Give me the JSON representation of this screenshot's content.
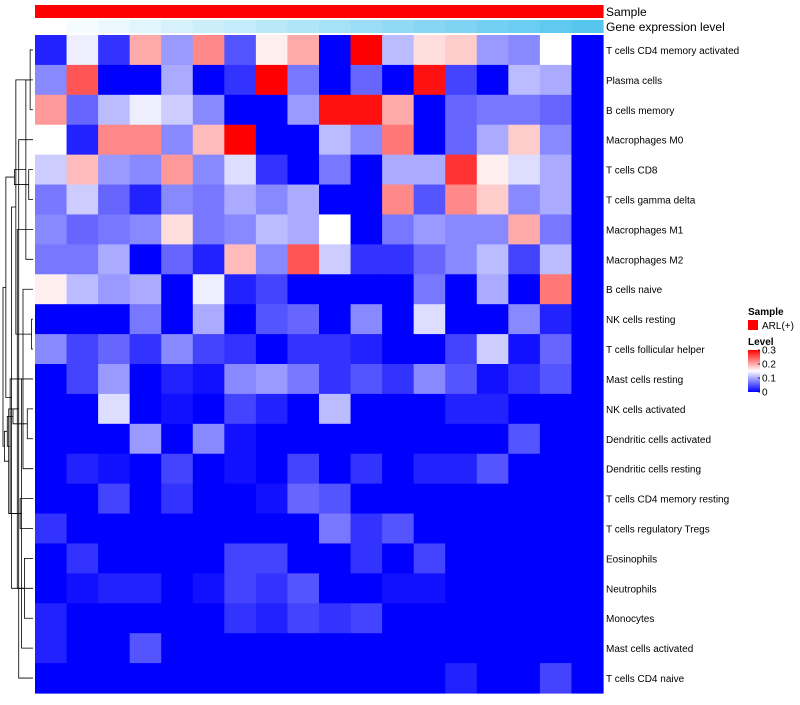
{
  "chart_data": {
    "type": "heatmap",
    "title": "",
    "top_annotations": [
      {
        "name": "Sample",
        "color": "#ff0000",
        "values": [
          "ARL(+)",
          "ARL(+)",
          "ARL(+)",
          "ARL(+)",
          "ARL(+)",
          "ARL(+)",
          "ARL(+)",
          "ARL(+)",
          "ARL(+)",
          "ARL(+)",
          "ARL(+)",
          "ARL(+)",
          "ARL(+)",
          "ARL(+)",
          "ARL(+)",
          "ARL(+)",
          "ARL(+)",
          "ARL(+)"
        ]
      },
      {
        "name": "Gene expression level",
        "low_color": "#ffffff",
        "high_color": "#56c6ef",
        "values": [
          0.0,
          0.06,
          0.12,
          0.18,
          0.24,
          0.3,
          0.35,
          0.41,
          0.47,
          0.53,
          0.59,
          0.65,
          0.71,
          0.76,
          0.82,
          0.88,
          0.94,
          1.0
        ]
      }
    ],
    "rows": [
      "T cells CD4 memory activated",
      "Plasma cells",
      "B cells memory",
      "Macrophages M0",
      "T cells CD8",
      "T cells gamma delta",
      "Macrophages M1",
      "Macrophages M2",
      "B cells naive",
      "NK cells resting",
      "T cells follicular helper",
      "Mast cells resting",
      "NK cells activated",
      "Dendritic cells activated",
      "Dendritic cells resting",
      "T cells CD4 memory resting",
      "T cells regulatory  Tregs",
      "Eosinophils",
      "Neutrophils",
      "Monocytes",
      "Mast cells activated",
      "T cells CD4 naive"
    ],
    "n_columns": 18,
    "values": [
      [
        0.02,
        0.14,
        0.03,
        0.2,
        0.09,
        0.22,
        0.05,
        0.16,
        0.2,
        0.0,
        0.3,
        0.11,
        0.17,
        0.18,
        0.09,
        0.08,
        0.15,
        0.0
      ],
      [
        0.08,
        0.25,
        0.0,
        0.0,
        0.1,
        0.0,
        0.03,
        0.3,
        0.07,
        0.0,
        0.06,
        0.0,
        0.29,
        0.04,
        0.0,
        0.11,
        0.1,
        0.0
      ],
      [
        0.21,
        0.06,
        0.11,
        0.14,
        0.12,
        0.08,
        0.0,
        0.0,
        0.09,
        0.29,
        0.29,
        0.2,
        0.0,
        0.06,
        0.07,
        0.07,
        0.06,
        0.0
      ],
      [
        0.15,
        0.02,
        0.22,
        0.22,
        0.08,
        0.19,
        0.3,
        0.0,
        0.0,
        0.11,
        0.08,
        0.23,
        0.0,
        0.06,
        0.1,
        0.18,
        0.08,
        0.0
      ],
      [
        0.12,
        0.19,
        0.09,
        0.08,
        0.21,
        0.08,
        0.13,
        0.03,
        0.0,
        0.07,
        0.0,
        0.1,
        0.1,
        0.27,
        0.16,
        0.13,
        0.1,
        0.0
      ],
      [
        0.07,
        0.12,
        0.06,
        0.02,
        0.08,
        0.07,
        0.1,
        0.08,
        0.1,
        0.0,
        0.0,
        0.22,
        0.05,
        0.22,
        0.18,
        0.08,
        0.1,
        0.0
      ],
      [
        0.08,
        0.06,
        0.07,
        0.08,
        0.17,
        0.07,
        0.08,
        0.11,
        0.1,
        0.15,
        0.0,
        0.07,
        0.09,
        0.08,
        0.08,
        0.2,
        0.07,
        0.0
      ],
      [
        0.07,
        0.07,
        0.1,
        0.0,
        0.06,
        0.02,
        0.19,
        0.08,
        0.25,
        0.12,
        0.03,
        0.03,
        0.06,
        0.08,
        0.11,
        0.04,
        0.11,
        0.0
      ],
      [
        0.16,
        0.11,
        0.09,
        0.1,
        0.0,
        0.14,
        0.02,
        0.04,
        0.0,
        0.0,
        0.0,
        0.0,
        0.07,
        0.0,
        0.1,
        0.0,
        0.23,
        0.0
      ],
      [
        0.0,
        0.0,
        0.0,
        0.07,
        0.0,
        0.1,
        0.0,
        0.05,
        0.06,
        0.0,
        0.08,
        0.0,
        0.13,
        0.0,
        0.0,
        0.08,
        0.02,
        0.0
      ],
      [
        0.08,
        0.04,
        0.06,
        0.03,
        0.08,
        0.04,
        0.03,
        0.0,
        0.03,
        0.03,
        0.02,
        0.0,
        0.0,
        0.04,
        0.12,
        0.01,
        0.06,
        0.0
      ],
      [
        0.0,
        0.04,
        0.09,
        0.0,
        0.02,
        0.01,
        0.08,
        0.09,
        0.07,
        0.03,
        0.05,
        0.03,
        0.08,
        0.05,
        0.01,
        0.03,
        0.05,
        0.0
      ],
      [
        0.0,
        0.0,
        0.13,
        0.0,
        0.01,
        0.0,
        0.04,
        0.02,
        0.0,
        0.11,
        0.0,
        0.0,
        0.0,
        0.02,
        0.02,
        0.0,
        0.0,
        0.0
      ],
      [
        0.0,
        0.0,
        0.0,
        0.09,
        0.0,
        0.08,
        0.01,
        0.0,
        0.0,
        0.0,
        0.0,
        0.0,
        0.0,
        0.0,
        0.0,
        0.05,
        0.0,
        0.0
      ],
      [
        0.0,
        0.02,
        0.01,
        0.0,
        0.04,
        0.0,
        0.01,
        0.0,
        0.04,
        0.0,
        0.03,
        0.0,
        0.02,
        0.02,
        0.05,
        0.0,
        0.0,
        0.0
      ],
      [
        0.0,
        0.0,
        0.04,
        0.0,
        0.03,
        0.0,
        0.0,
        0.01,
        0.06,
        0.05,
        0.0,
        0.0,
        0.0,
        0.0,
        0.0,
        0.0,
        0.0,
        0.0
      ],
      [
        0.03,
        0.0,
        0.0,
        0.0,
        0.0,
        0.0,
        0.0,
        0.0,
        0.0,
        0.07,
        0.03,
        0.05,
        0.0,
        0.0,
        0.0,
        0.0,
        0.0,
        0.0
      ],
      [
        0.0,
        0.03,
        0.0,
        0.0,
        0.0,
        0.0,
        0.04,
        0.04,
        0.0,
        0.0,
        0.03,
        0.0,
        0.04,
        0.0,
        0.0,
        0.0,
        0.0,
        0.0
      ],
      [
        0.0,
        0.01,
        0.02,
        0.02,
        0.0,
        0.01,
        0.04,
        0.03,
        0.05,
        0.0,
        0.0,
        0.01,
        0.01,
        0.0,
        0.0,
        0.0,
        0.0,
        0.0
      ],
      [
        0.02,
        0.0,
        0.0,
        0.0,
        0.0,
        0.0,
        0.03,
        0.02,
        0.04,
        0.03,
        0.04,
        0.0,
        0.0,
        0.0,
        0.0,
        0.0,
        0.0,
        0.0
      ],
      [
        0.02,
        0.0,
        0.0,
        0.05,
        0.0,
        0.0,
        0.0,
        0.0,
        0.0,
        0.0,
        0.0,
        0.0,
        0.0,
        0.0,
        0.0,
        0.0,
        0.0,
        0.0
      ],
      [
        0.0,
        0.0,
        0.0,
        0.0,
        0.0,
        0.0,
        0.0,
        0.0,
        0.0,
        0.0,
        0.0,
        0.0,
        0.0,
        0.02,
        0.0,
        0.0,
        0.04,
        0.0
      ]
    ],
    "color_scale": {
      "min": 0,
      "mid": 0.15,
      "max": 0.3,
      "low_color": "#0000ff",
      "mid_color": "#ffffff",
      "high_color": "#ff0000"
    },
    "dendrogram": {
      "side": "left",
      "merges": [
        [
          9,
          10
        ],
        [
          0,
          2
        ],
        [
          4,
          5
        ],
        [
          12,
          13
        ],
        [
          1,
          7
        ],
        [
          17,
          19
        ],
        [
          8,
          14
        ],
        [
          11,
          20
        ],
        [
          15,
          16
        ],
        [
          3,
          21
        ],
        [
          6,
          18
        ],
        [
          22,
          23
        ],
        [
          24,
          26
        ],
        [
          25,
          31
        ],
        [
          27,
          33
        ],
        [
          28,
          30
        ],
        [
          29,
          32
        ],
        [
          35,
          37
        ],
        [
          34,
          36
        ],
        [
          38,
          39
        ],
        [
          40,
          41
        ]
      ]
    },
    "legend": {
      "position": "right",
      "sample_title": "Sample",
      "sample_entries": [
        {
          "label": "ARL(+)",
          "color": "#ff0000"
        }
      ],
      "level_title": "Level",
      "ticks": [
        {
          "label": "0.3",
          "value": 0.3
        },
        {
          "label": "0.2",
          "value": 0.2
        },
        {
          "label": "0.1",
          "value": 0.1
        },
        {
          "label": "0",
          "value": 0.0
        }
      ]
    }
  }
}
